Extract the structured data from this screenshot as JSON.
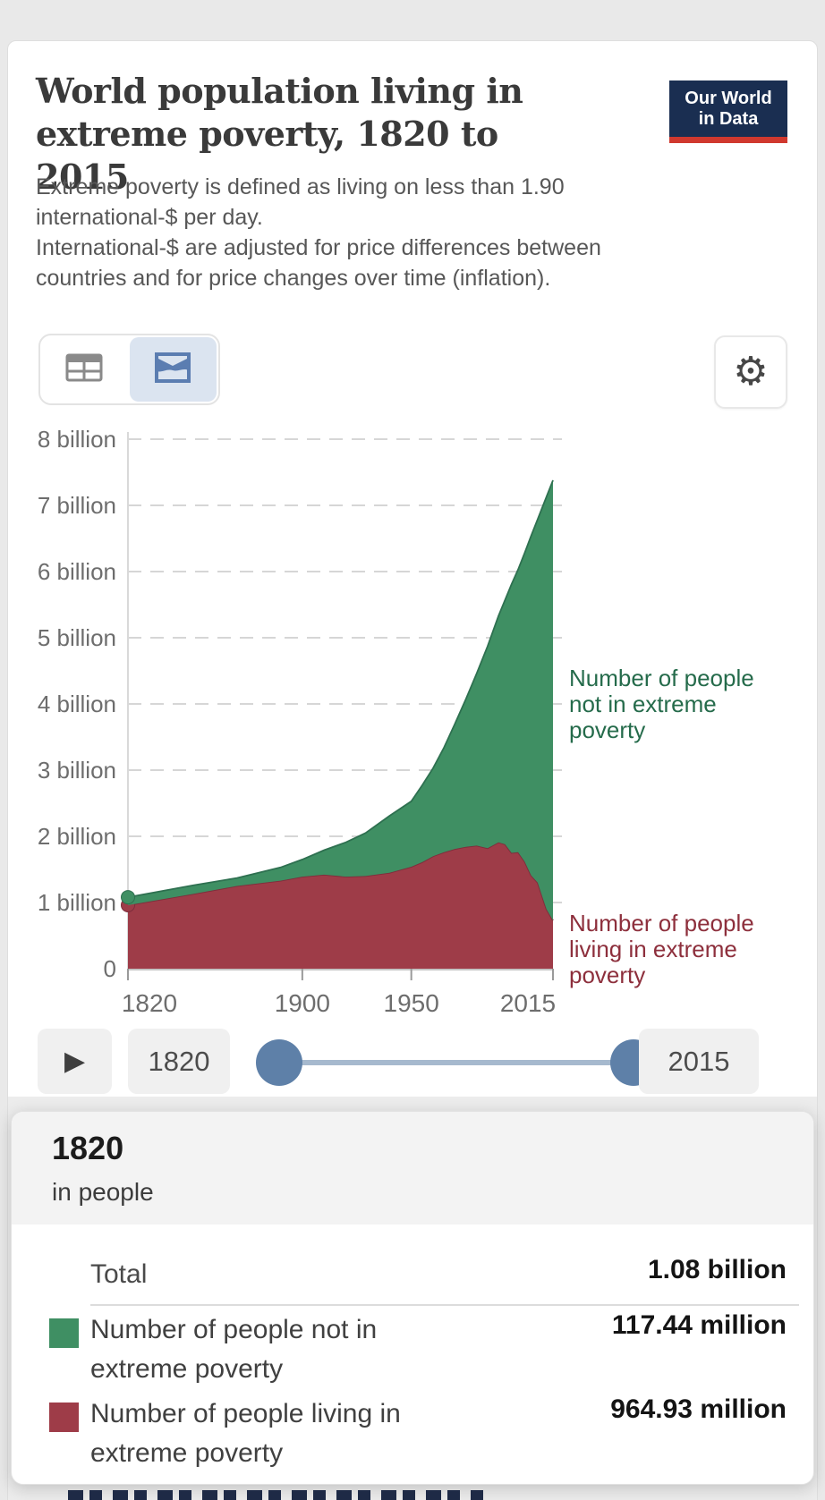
{
  "header": {
    "title": "World population living in extreme poverty, 1820 to 2015",
    "subtitle_line1": "Extreme poverty is defined as living on less than 1.90 international-$ per day.",
    "subtitle_line2": "International-$ are adjusted for price differences between countries and for price changes over time (inflation).",
    "logo": {
      "line1": "Our World",
      "line2": "in Data",
      "bg_color": "#1a2e51",
      "stripe_color": "#d0382e"
    }
  },
  "toolbar": {
    "selected_view": "chart",
    "selected_bg": "#dbe4f0",
    "table_icon_color": "#8a8a8a",
    "chart_icon_color": "#5b7db1",
    "gear_glyph": "⚙"
  },
  "annotations": {
    "not_poverty_label": "Number of people not in extreme poverty",
    "poverty_label": "Number of people living in extreme poverty",
    "not_poverty_color": "#256b4b",
    "poverty_color": "#8d2f3c"
  },
  "controls": {
    "play_glyph": "▶",
    "start_year": "1820",
    "end_year": "2015",
    "handle_color": "#5e80a8",
    "track_color": "#a6b9ce"
  },
  "tooltip": {
    "year": "1820",
    "unit": "in people",
    "rows": [
      {
        "label": "Total",
        "value": "1.08 billion",
        "swatch": ""
      },
      {
        "label": "Number of people not in extreme poverty",
        "value": "117.44 million",
        "swatch": "#3f8f63"
      },
      {
        "label": "Number of people living in extreme poverty",
        "value": "964.93 million",
        "swatch": "#9e3c48"
      }
    ]
  },
  "chart_data": {
    "type": "area",
    "stacked": true,
    "title": "World population living in extreme poverty, 1820 to 2015",
    "xlabel": "",
    "ylabel": "",
    "ylim": [
      0,
      8
    ],
    "grid": true,
    "legend_position": "right-annotations",
    "x": [
      1820,
      1850,
      1870,
      1890,
      1900,
      1910,
      1920,
      1929,
      1940,
      1950,
      1955,
      1960,
      1965,
      1970,
      1975,
      1980,
      1985,
      1990,
      1993,
      1996,
      1999,
      2002,
      2005,
      2008,
      2010,
      2012,
      2015
    ],
    "series": [
      {
        "name": "Number of people living in extreme poverty",
        "color": "#9e3c48",
        "edge": "#7e2d3b",
        "values_billions": [
          0.96,
          1.13,
          1.25,
          1.33,
          1.39,
          1.42,
          1.39,
          1.4,
          1.45,
          1.54,
          1.61,
          1.7,
          1.76,
          1.81,
          1.84,
          1.86,
          1.82,
          1.91,
          1.88,
          1.75,
          1.76,
          1.62,
          1.41,
          1.3,
          1.1,
          0.9,
          0.73
        ]
      },
      {
        "name": "Number of people not in extreme poverty",
        "color": "#3f8f63",
        "edge": "#2e7050",
        "values_billions": [
          0.12,
          0.13,
          0.12,
          0.2,
          0.26,
          0.37,
          0.52,
          0.65,
          0.86,
          0.99,
          1.16,
          1.33,
          1.58,
          1.89,
          2.23,
          2.6,
          3.05,
          3.42,
          3.69,
          4.06,
          4.27,
          4.66,
          5.13,
          5.49,
          5.86,
          6.23,
          6.65
        ]
      }
    ],
    "yticks": [
      {
        "v": 0,
        "label": "0"
      },
      {
        "v": 1,
        "label": "1 billion"
      },
      {
        "v": 2,
        "label": "2 billion"
      },
      {
        "v": 3,
        "label": "3 billion"
      },
      {
        "v": 4,
        "label": "4 billion"
      },
      {
        "v": 5,
        "label": "5 billion"
      },
      {
        "v": 6,
        "label": "6 billion"
      },
      {
        "v": 7,
        "label": "7 billion"
      },
      {
        "v": 8,
        "label": "8 billion"
      }
    ],
    "xticks": [
      {
        "year": 1820,
        "label": "1820"
      },
      {
        "year": 1900,
        "label": "1900"
      },
      {
        "year": 1950,
        "label": "1950"
      },
      {
        "year": 2015,
        "label": "2015"
      }
    ]
  }
}
